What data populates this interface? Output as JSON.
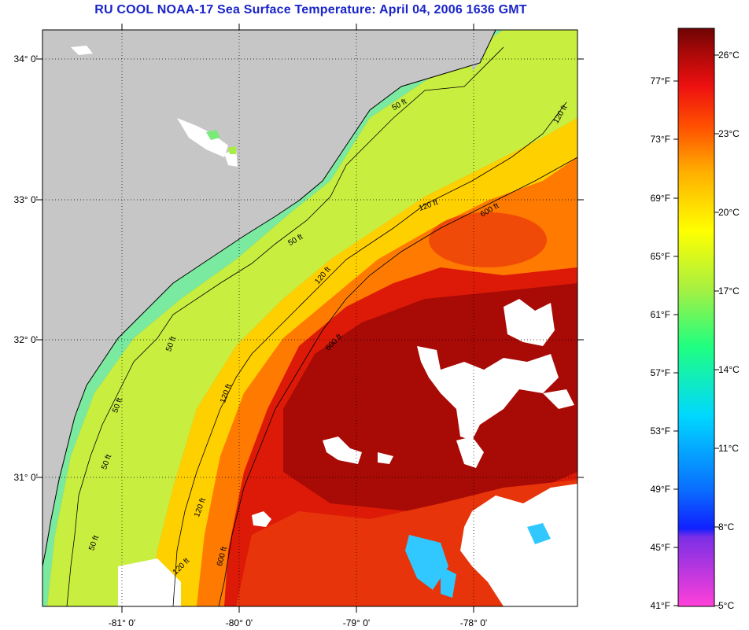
{
  "header": {
    "title": "RU COOL  NOAA-17  Sea Surface Temperature:  April 04, 2006 1636 GMT"
  },
  "map": {
    "lat_labels": [
      "34° 0'",
      "33° 0'",
      "32° 0'",
      "31° 0'"
    ],
    "lon_labels": [
      "-81° 0'",
      "-80° 0'",
      "-79° 0'",
      "-78° 0'"
    ],
    "contour_labels": [
      "50 ft",
      "50 ft",
      "50 ft",
      "50 ft",
      "50 ft",
      "50 ft",
      "120 ft",
      "120 ft",
      "120 ft",
      "120 ft",
      "120 ft",
      "120 ft",
      "600 ft",
      "600 ft",
      "600 ft"
    ]
  },
  "colorbar": {
    "fahrenheit_labels": [
      "77°F",
      "73°F",
      "69°F",
      "65°F",
      "61°F",
      "57°F",
      "53°F",
      "49°F",
      "45°F",
      "41°F"
    ],
    "celsius_labels": [
      "26°C",
      "23°C",
      "20°C",
      "17°C",
      "14°C",
      "11°C",
      "8°C",
      "5°C"
    ],
    "colors": [
      "#ff40d8",
      "#7a2fe6",
      "#1020ff",
      "#0a6cff",
      "#00d8ff",
      "#20ff80",
      "#a8f040",
      "#ffff00",
      "#ffb000",
      "#ff5000",
      "#ee1010",
      "#a80808",
      "#6e0404"
    ]
  },
  "colors": {
    "land": "#c6c6c6",
    "title": "#1a24c8",
    "cloud": "#ffffff"
  }
}
